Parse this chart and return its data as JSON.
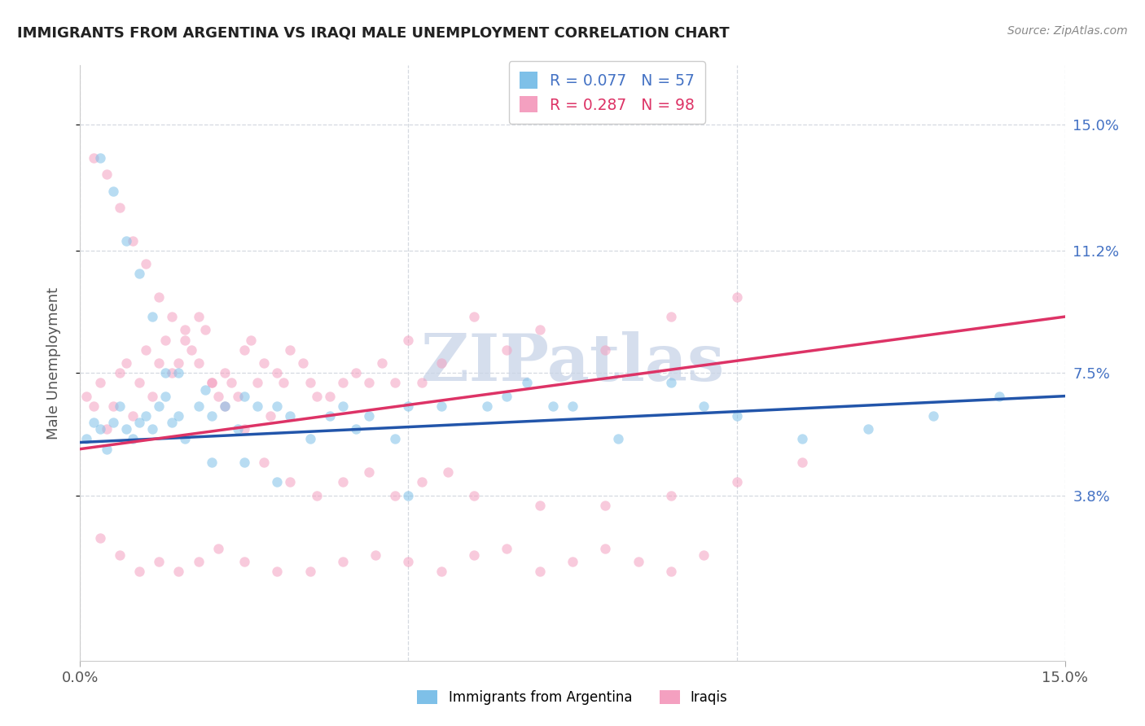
{
  "title": "IMMIGRANTS FROM ARGENTINA VS IRAQI MALE UNEMPLOYMENT CORRELATION CHART",
  "source_text": "Source: ZipAtlas.com",
  "ylabel": "Male Unemployment",
  "y_tick_labels_right": [
    "3.8%",
    "7.5%",
    "11.2%",
    "15.0%"
  ],
  "y_ticks": [
    0.038,
    0.075,
    0.112,
    0.15
  ],
  "xlim": [
    0.0,
    0.15
  ],
  "ylim": [
    -0.012,
    0.168
  ],
  "scatter_alpha": 0.55,
  "scatter_size": 80,
  "blue_color": "#7ec0e8",
  "pink_color": "#f4a0c0",
  "blue_line_color": "#2255aa",
  "pink_line_color": "#dd3366",
  "watermark_color": "#c8d4e8",
  "grid_color": "#d5d9e0",
  "blue_r": 0.077,
  "pink_r": 0.287,
  "blue_n": 57,
  "pink_n": 98,
  "blue_x": [
    0.001,
    0.002,
    0.003,
    0.004,
    0.005,
    0.006,
    0.007,
    0.008,
    0.009,
    0.01,
    0.011,
    0.012,
    0.013,
    0.014,
    0.015,
    0.016,
    0.018,
    0.019,
    0.02,
    0.022,
    0.024,
    0.025,
    0.027,
    0.03,
    0.032,
    0.035,
    0.038,
    0.04,
    0.042,
    0.044,
    0.048,
    0.05,
    0.055,
    0.062,
    0.065,
    0.068,
    0.072,
    0.075,
    0.082,
    0.09,
    0.095,
    0.1,
    0.11,
    0.12,
    0.13,
    0.14,
    0.003,
    0.005,
    0.007,
    0.009,
    0.011,
    0.013,
    0.015,
    0.02,
    0.025,
    0.03,
    0.05
  ],
  "blue_y": [
    0.055,
    0.06,
    0.058,
    0.052,
    0.06,
    0.065,
    0.058,
    0.055,
    0.06,
    0.062,
    0.058,
    0.065,
    0.068,
    0.06,
    0.062,
    0.055,
    0.065,
    0.07,
    0.062,
    0.065,
    0.058,
    0.068,
    0.065,
    0.065,
    0.062,
    0.055,
    0.062,
    0.065,
    0.058,
    0.062,
    0.055,
    0.065,
    0.065,
    0.065,
    0.068,
    0.072,
    0.065,
    0.065,
    0.055,
    0.072,
    0.065,
    0.062,
    0.055,
    0.058,
    0.062,
    0.068,
    0.14,
    0.13,
    0.115,
    0.105,
    0.092,
    0.075,
    0.075,
    0.048,
    0.048,
    0.042,
    0.038
  ],
  "pink_x": [
    0.001,
    0.002,
    0.003,
    0.004,
    0.005,
    0.006,
    0.007,
    0.008,
    0.009,
    0.01,
    0.011,
    0.012,
    0.013,
    0.014,
    0.015,
    0.016,
    0.017,
    0.018,
    0.019,
    0.02,
    0.021,
    0.022,
    0.023,
    0.024,
    0.025,
    0.026,
    0.027,
    0.028,
    0.029,
    0.03,
    0.031,
    0.032,
    0.034,
    0.035,
    0.036,
    0.038,
    0.04,
    0.042,
    0.044,
    0.046,
    0.048,
    0.05,
    0.052,
    0.055,
    0.06,
    0.065,
    0.07,
    0.08,
    0.09,
    0.1,
    0.002,
    0.004,
    0.006,
    0.008,
    0.01,
    0.012,
    0.014,
    0.016,
    0.018,
    0.02,
    0.022,
    0.025,
    0.028,
    0.032,
    0.036,
    0.04,
    0.044,
    0.048,
    0.052,
    0.056,
    0.06,
    0.07,
    0.08,
    0.09,
    0.1,
    0.11,
    0.003,
    0.006,
    0.009,
    0.012,
    0.015,
    0.018,
    0.021,
    0.025,
    0.03,
    0.035,
    0.04,
    0.045,
    0.05,
    0.055,
    0.06,
    0.065,
    0.07,
    0.075,
    0.08,
    0.085,
    0.09,
    0.095
  ],
  "pink_y": [
    0.068,
    0.065,
    0.072,
    0.058,
    0.065,
    0.075,
    0.078,
    0.062,
    0.072,
    0.082,
    0.068,
    0.078,
    0.085,
    0.075,
    0.078,
    0.088,
    0.082,
    0.092,
    0.088,
    0.072,
    0.068,
    0.075,
    0.072,
    0.068,
    0.082,
    0.085,
    0.072,
    0.078,
    0.062,
    0.075,
    0.072,
    0.082,
    0.078,
    0.072,
    0.068,
    0.068,
    0.072,
    0.075,
    0.072,
    0.078,
    0.072,
    0.085,
    0.072,
    0.078,
    0.092,
    0.082,
    0.088,
    0.082,
    0.092,
    0.098,
    0.14,
    0.135,
    0.125,
    0.115,
    0.108,
    0.098,
    0.092,
    0.085,
    0.078,
    0.072,
    0.065,
    0.058,
    0.048,
    0.042,
    0.038,
    0.042,
    0.045,
    0.038,
    0.042,
    0.045,
    0.038,
    0.035,
    0.035,
    0.038,
    0.042,
    0.048,
    0.025,
    0.02,
    0.015,
    0.018,
    0.015,
    0.018,
    0.022,
    0.018,
    0.015,
    0.015,
    0.018,
    0.02,
    0.018,
    0.015,
    0.02,
    0.022,
    0.015,
    0.018,
    0.022,
    0.018,
    0.015,
    0.02
  ]
}
